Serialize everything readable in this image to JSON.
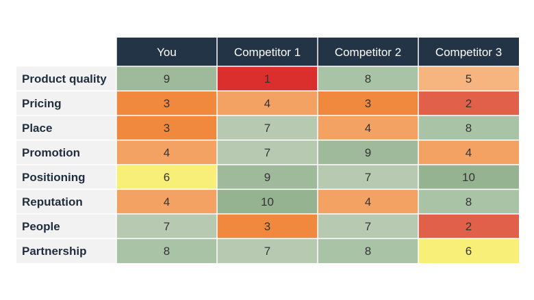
{
  "chart_data": {
    "type": "heatmap",
    "columns": [
      "You",
      "Competitor 1",
      "Competitor 2",
      "Competitor 3"
    ],
    "rows": [
      "Product quality",
      "Pricing",
      "Place",
      "Promotion",
      "Positioning",
      "Reputation",
      "People",
      "Partnership"
    ],
    "values": [
      [
        9,
        1,
        8,
        5
      ],
      [
        3,
        4,
        3,
        2
      ],
      [
        3,
        7,
        4,
        8
      ],
      [
        4,
        7,
        9,
        4
      ],
      [
        6,
        9,
        7,
        10
      ],
      [
        4,
        10,
        4,
        8
      ],
      [
        7,
        3,
        7,
        2
      ],
      [
        8,
        7,
        8,
        6
      ]
    ],
    "colors": {
      "header_bg": "#243447",
      "row_label_bg": "#f2f2f2",
      "scale": {
        "1": "#da2f2c",
        "2": "#e0604a",
        "3": "#f0883e",
        "4": "#f4a264",
        "5": "#f6b47e",
        "6": "#f8ef79",
        "7": "#b7cab1",
        "8": "#a9c3a6",
        "9": "#9eba9b",
        "10": "#95b391"
      }
    }
  }
}
